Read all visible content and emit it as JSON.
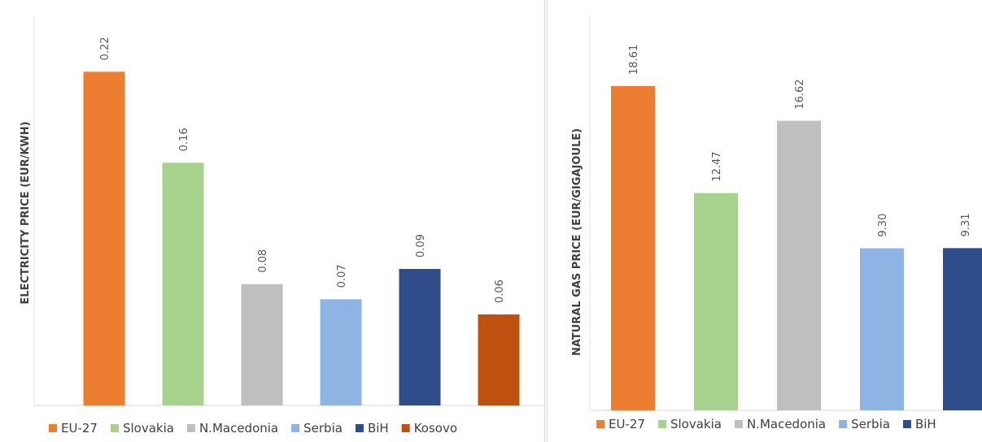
{
  "chart_data": [
    {
      "type": "bar",
      "categories": [
        "EU-27",
        "Slovakia",
        "N.Macedonia",
        "Serbia",
        "BiH",
        "Kosovo"
      ],
      "values": [
        0.22,
        0.16,
        0.08,
        0.07,
        0.09,
        0.06
      ],
      "value_labels": [
        "0.22",
        "0.16",
        "0.08",
        "0.07",
        "0.09",
        "0.06"
      ],
      "colors": [
        "#ed7d31",
        "#a9d18e",
        "#bfbfbf",
        "#8db4e2",
        "#2e4d8a",
        "#c0500f"
      ],
      "title": "",
      "xlabel": "",
      "ylabel": "ELECTRICITY PRICE (EUR/KWH)",
      "ylim": [
        0,
        0.225
      ],
      "grid": false,
      "legend": "bottom"
    },
    {
      "type": "bar",
      "categories": [
        "EU-27",
        "Slovakia",
        "N.Macedonia",
        "Serbia",
        "BiH"
      ],
      "values": [
        18.61,
        12.47,
        16.62,
        9.3,
        9.31
      ],
      "value_labels": [
        "18.61",
        "12.47",
        "16.62",
        "9.30",
        "9.31"
      ],
      "colors": [
        "#ed7d31",
        "#a9d18e",
        "#bfbfbf",
        "#8db4e2",
        "#2e4d8a"
      ],
      "title": "",
      "xlabel": "",
      "ylabel": "NATURAL GAS PRICE (EUR/GIGAJOULE)",
      "ylim": [
        0,
        18.61
      ],
      "grid": false,
      "legend": "bottom"
    }
  ]
}
